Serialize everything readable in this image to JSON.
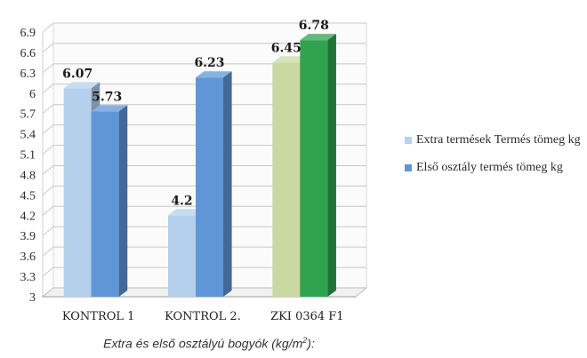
{
  "colors": {
    "extra": "#b5d0ec",
    "extra_zki": "#c9d9a2",
    "first": "#5f97d6",
    "first_zki": "#2fa34f",
    "grid": "#c8c8c8"
  },
  "legend": {
    "extra_label": "Extra termések Termés tömeg kg",
    "first_label": "Első osztály termés tömeg kg"
  },
  "caption": {
    "text": "Extra és első osztályú bogyók (kg/m",
    "sup": "2",
    "suffix": "):"
  },
  "chart_data": {
    "type": "bar",
    "categories": [
      "KONTROL 1",
      "KONTROL 2.",
      "ZKI 0364 F1"
    ],
    "series": [
      {
        "name": "Extra termések Termés tömeg kg",
        "values": [
          6.07,
          4.2,
          6.45
        ]
      },
      {
        "name": "Első osztály termés tömeg kg",
        "values": [
          5.73,
          6.23,
          6.78
        ]
      }
    ],
    "data_labels": [
      [
        "6.07",
        "4.2",
        "6.45"
      ],
      [
        "5.73",
        "6.23",
        "6.78"
      ]
    ],
    "yticks": [
      "3",
      "3.3",
      "3.6",
      "3.9",
      "4.2",
      "4.5",
      "4.8",
      "5.1",
      "5.4",
      "5.7",
      "6",
      "6.3",
      "6.6",
      "6.9"
    ],
    "ylim": [
      3,
      6.9
    ],
    "grid": true,
    "legend_position": "right",
    "style": "3d-columns"
  }
}
